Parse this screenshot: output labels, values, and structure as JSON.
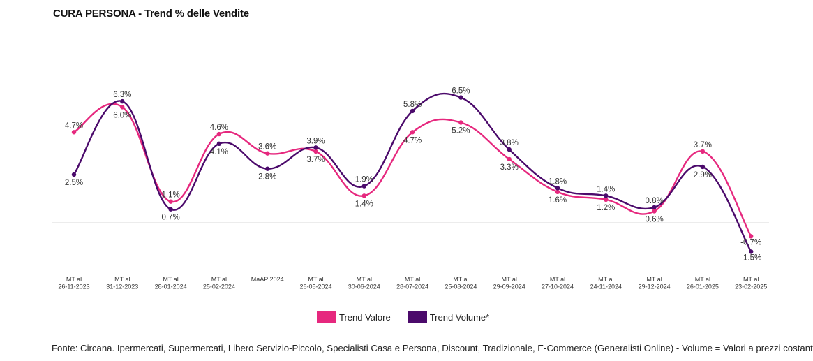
{
  "title": "CURA PERSONA - Trend % delle Vendite",
  "source": "Fonte: Circana. Ipermercati, Supermercati, Libero Servizio-Piccolo, Specialisti Casa e Persona, Discount, Tradizionale, E-Commerce (Generalisti Online) - Volume = Valori a prezzi costanti.",
  "chart_data": {
    "type": "line",
    "title": "CURA PERSONA - Trend % delle Vendite",
    "categories": [
      [
        "MT al",
        "26-11-2023"
      ],
      [
        "MT al",
        "31-12-2023"
      ],
      [
        "MT al",
        "28-01-2024"
      ],
      [
        "MT al",
        "25-02-2024"
      ],
      [
        "MaAP 2024"
      ],
      [
        "MT al",
        "26-05-2024"
      ],
      [
        "MT al",
        "30-06-2024"
      ],
      [
        "MT al",
        "28-07-2024"
      ],
      [
        "MT al",
        "25-08-2024"
      ],
      [
        "MT al",
        "29-09-2024"
      ],
      [
        "MT al",
        "27-10-2024"
      ],
      [
        "MT al",
        "24-11-2024"
      ],
      [
        "MT al",
        "29-12-2024"
      ],
      [
        "MT al",
        "26-01-2025"
      ],
      [
        "MT al",
        "23-02-2025"
      ]
    ],
    "series": [
      {
        "name": "Trend Valore",
        "color": "#e6287e",
        "values": [
          4.7,
          6.0,
          1.1,
          4.6,
          3.6,
          3.7,
          1.4,
          4.7,
          5.2,
          3.3,
          1.6,
          1.2,
          0.6,
          3.7,
          -0.7
        ],
        "labels": [
          "4.7%",
          "6.0%",
          "1.1%",
          "4.6%",
          "3.6%",
          "3.7%",
          "1.4%",
          "4.7%",
          "5.2%",
          "3.3%",
          "1.6%",
          "1.2%",
          "0.6%",
          "3.7%",
          "-0.7%"
        ]
      },
      {
        "name": "Trend Volume*",
        "color": "#4b0a6b",
        "values": [
          2.5,
          6.3,
          0.7,
          4.1,
          2.8,
          3.9,
          1.9,
          5.8,
          6.5,
          3.8,
          1.8,
          1.4,
          0.8,
          2.9,
          -1.5
        ],
        "labels": [
          "2.5%",
          "6.3%",
          "0.7%",
          "4.1%",
          "2.8%",
          "3.9%",
          "1.9%",
          "5.8%",
          "6.5%",
          "3.8%",
          "1.8%",
          "1.4%",
          "0.8%",
          "2.9%",
          "-1.5%"
        ]
      }
    ],
    "ylim": [
      -2.0,
      7.0
    ],
    "grid": false,
    "baseline": 0,
    "legend_position": "bottom"
  }
}
